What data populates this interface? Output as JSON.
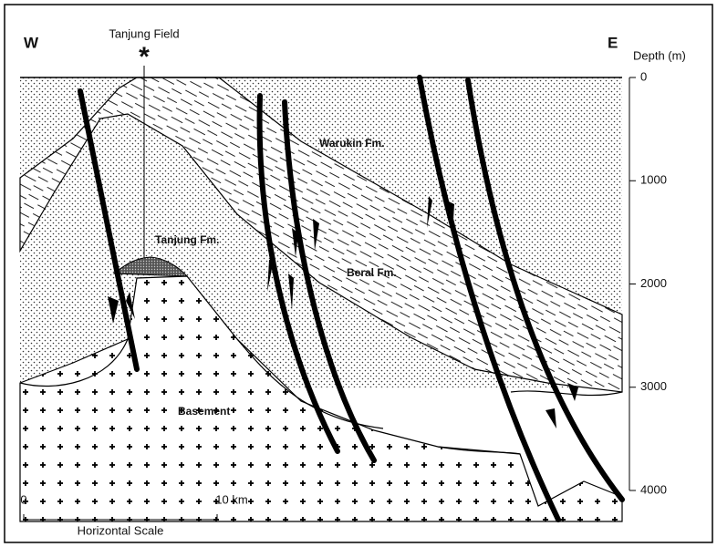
{
  "header": {
    "west": "W",
    "east": "E",
    "well": "Tanjung Field"
  },
  "depth_axis": {
    "label": "Depth (m)",
    "ticks": [
      0,
      1000,
      2000,
      3000,
      4000
    ]
  },
  "formations": [
    "Warukin Fm.",
    "Tanjung Fm.",
    "Beral Fm.",
    "Basement"
  ],
  "scale": {
    "start": "0",
    "end": "10 km",
    "label": "Horizontal Scale"
  }
}
